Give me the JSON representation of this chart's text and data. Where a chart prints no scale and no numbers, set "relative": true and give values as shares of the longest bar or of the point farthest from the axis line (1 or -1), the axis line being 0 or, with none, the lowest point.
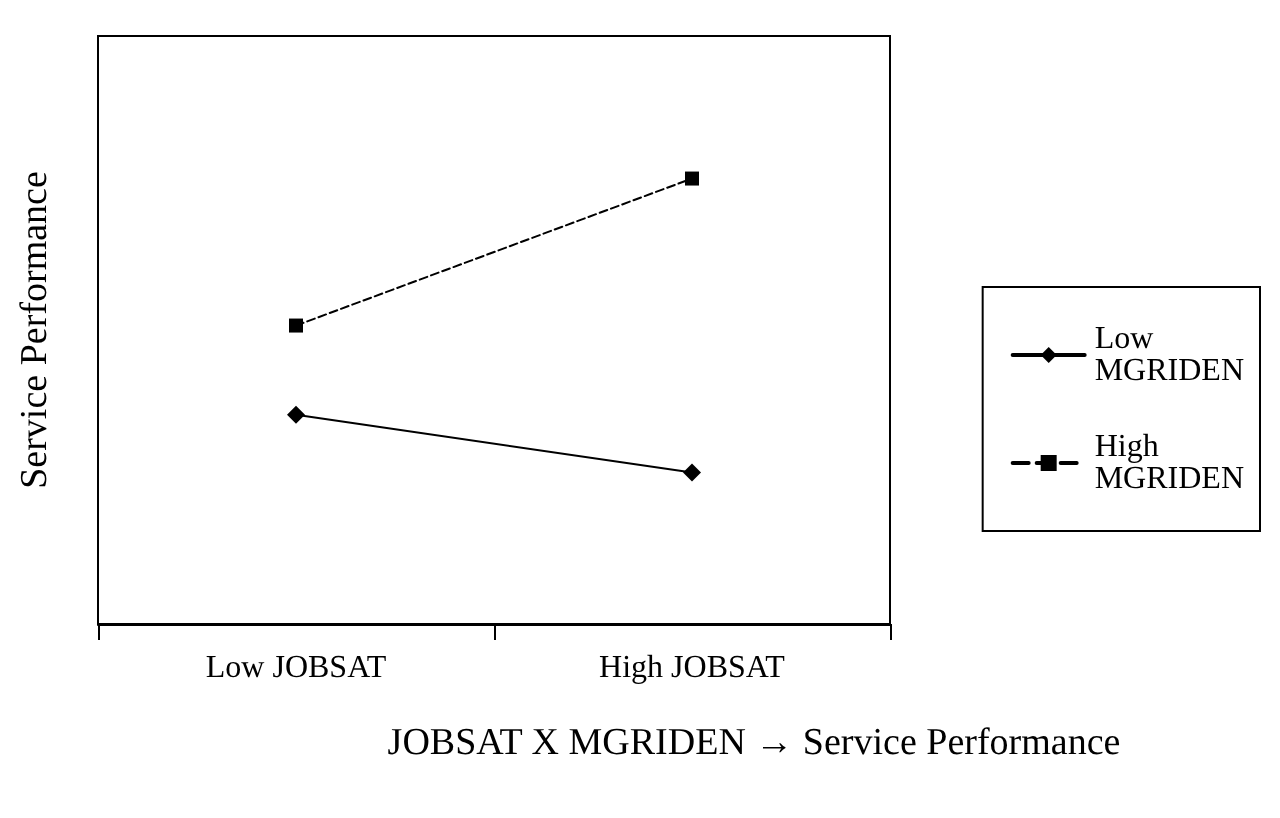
{
  "chart_data": {
    "type": "line",
    "relative": true,
    "xlabel": "JOBSAT X MGRIDEN → Service Performance",
    "ylabel": "Service Performance",
    "categories": [
      "Low JOBSAT",
      "High JOBSAT"
    ],
    "legend": "right",
    "grid": false,
    "series": [
      {
        "name": "Low MGRIDEN",
        "color": "#000000",
        "values": [
          0.47,
          0.34
        ],
        "marker": "diamond",
        "line_style": "solid"
      },
      {
        "name": "High MGRIDEN",
        "color": "#000000",
        "values": [
          0.67,
          1
        ],
        "marker": "square",
        "line_style": "dashed"
      }
    ]
  }
}
